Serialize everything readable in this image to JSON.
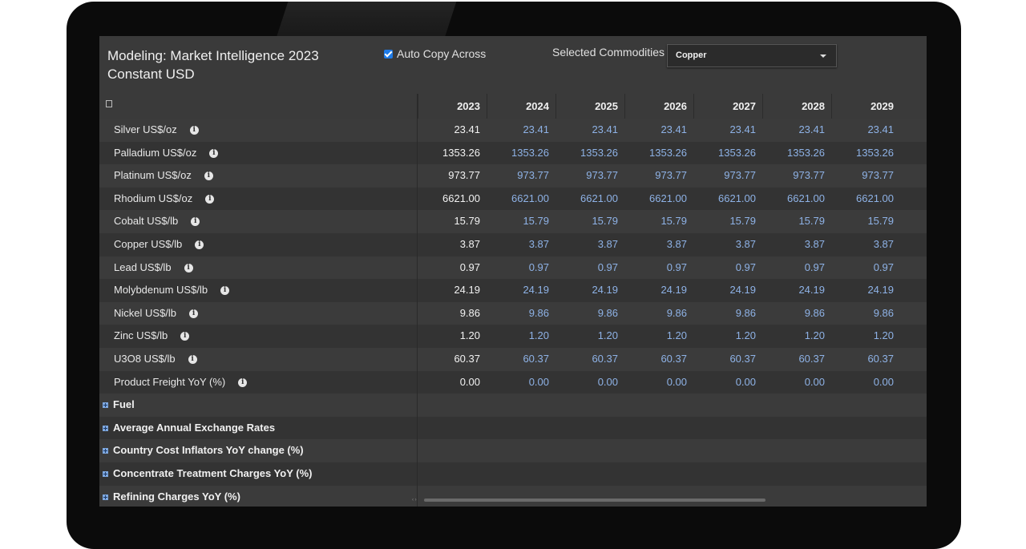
{
  "header": {
    "title_line1": "Modeling: Market Intelligence 2023",
    "title_line2": "Constant USD",
    "auto_copy_label": "Auto Copy Across",
    "auto_copy_checked": true,
    "selected_commodities_label": "Selected Commodities",
    "selected_commodity": "Copper"
  },
  "years": [
    "2023",
    "2024",
    "2025",
    "2026",
    "2027",
    "2028",
    "2029"
  ],
  "rows": [
    {
      "label": "Silver US$/oz",
      "values": [
        "23.41",
        "23.41",
        "23.41",
        "23.41",
        "23.41",
        "23.41",
        "23.41"
      ]
    },
    {
      "label": "Palladium US$/oz",
      "values": [
        "1353.26",
        "1353.26",
        "1353.26",
        "1353.26",
        "1353.26",
        "1353.26",
        "1353.26"
      ]
    },
    {
      "label": "Platinum US$/oz",
      "values": [
        "973.77",
        "973.77",
        "973.77",
        "973.77",
        "973.77",
        "973.77",
        "973.77"
      ]
    },
    {
      "label": "Rhodium US$/oz",
      "values": [
        "6621.00",
        "6621.00",
        "6621.00",
        "6621.00",
        "6621.00",
        "6621.00",
        "6621.00"
      ]
    },
    {
      "label": "Cobalt US$/lb",
      "values": [
        "15.79",
        "15.79",
        "15.79",
        "15.79",
        "15.79",
        "15.79",
        "15.79"
      ]
    },
    {
      "label": "Copper US$/lb",
      "values": [
        "3.87",
        "3.87",
        "3.87",
        "3.87",
        "3.87",
        "3.87",
        "3.87"
      ]
    },
    {
      "label": "Lead US$/lb",
      "values": [
        "0.97",
        "0.97",
        "0.97",
        "0.97",
        "0.97",
        "0.97",
        "0.97"
      ]
    },
    {
      "label": "Molybdenum US$/lb",
      "values": [
        "24.19",
        "24.19",
        "24.19",
        "24.19",
        "24.19",
        "24.19",
        "24.19"
      ]
    },
    {
      "label": "Nickel US$/lb",
      "values": [
        "9.86",
        "9.86",
        "9.86",
        "9.86",
        "9.86",
        "9.86",
        "9.86"
      ]
    },
    {
      "label": "Zinc US$/lb",
      "values": [
        "1.20",
        "1.20",
        "1.20",
        "1.20",
        "1.20",
        "1.20",
        "1.20"
      ]
    },
    {
      "label": "U3O8 US$/lb",
      "values": [
        "60.37",
        "60.37",
        "60.37",
        "60.37",
        "60.37",
        "60.37",
        "60.37"
      ]
    },
    {
      "label": "Product Freight YoY (%)",
      "values": [
        "0.00",
        "0.00",
        "0.00",
        "0.00",
        "0.00",
        "0.00",
        "0.00"
      ]
    }
  ],
  "groups": [
    {
      "label": "Fuel"
    },
    {
      "label": "Average Annual Exchange Rates"
    },
    {
      "label": "Country Cost Inflators YoY change (%)"
    },
    {
      "label": "Concentrate Treatment Charges YoY (%)"
    },
    {
      "label": "Refining Charges YoY (%)"
    }
  ],
  "colors": {
    "base_value": "#f2f2f2",
    "projected_value": "#8eb2e6",
    "checkbox": "#1e7be8"
  },
  "icons": {
    "info": "info-icon",
    "expand": "plus-square-icon",
    "dropdown": "chevron-down-icon"
  }
}
